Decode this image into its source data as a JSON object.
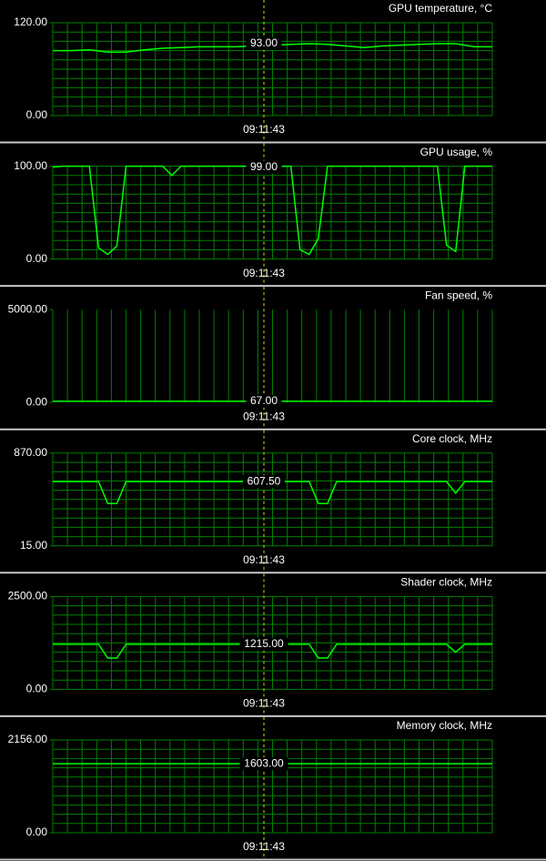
{
  "chart_data": [
    {
      "type": "line",
      "title": "GPU temperature, °C",
      "color": "#00ff00",
      "hgrid": true,
      "ylim": [
        0,
        120
      ],
      "yticks": [
        {
          "value": 0,
          "label": "0.00"
        },
        {
          "value": 120,
          "label": "120.00"
        }
      ],
      "values": [
        84,
        84,
        85,
        82,
        82,
        85,
        87,
        88,
        89,
        89,
        89,
        90,
        91,
        92,
        93,
        92,
        90,
        88,
        90,
        91,
        92,
        93,
        93,
        89,
        89
      ],
      "cursor": {
        "value": 93,
        "label": "93.00",
        "time": "09:11:43"
      }
    },
    {
      "type": "line",
      "title": "GPU usage, %",
      "color": "#00ff00",
      "hgrid": true,
      "ylim": [
        0,
        100
      ],
      "yticks": [
        {
          "value": 0,
          "label": "0.00"
        },
        {
          "value": 100,
          "label": "100.00"
        }
      ],
      "values": [
        99,
        100,
        100,
        100,
        100,
        12,
        5,
        14,
        100,
        100,
        100,
        100,
        100,
        90,
        100,
        100,
        100,
        100,
        100,
        100,
        100,
        100,
        100,
        100,
        100,
        100,
        100,
        10,
        5,
        22,
        100,
        100,
        100,
        100,
        100,
        100,
        100,
        100,
        100,
        100,
        100,
        100,
        100,
        15,
        8,
        100,
        100,
        100,
        100
      ],
      "cursor": {
        "value": 99,
        "label": "99.00",
        "time": "09:11:43"
      }
    },
    {
      "type": "line",
      "title": "Fan speed, %",
      "color": "#00ff00",
      "hgrid": false,
      "ylim": [
        0,
        5000
      ],
      "yticks": [
        {
          "value": 0,
          "label": "0.00"
        },
        {
          "value": 5000,
          "label": "5000.00"
        }
      ],
      "values": [
        67,
        67,
        67,
        67,
        67
      ],
      "cursor": {
        "value": 67,
        "label": "67.00",
        "time": "09:11:43"
      }
    },
    {
      "type": "line",
      "title": "Core clock, MHz",
      "color": "#00ff00",
      "hgrid": true,
      "ylim": [
        15,
        870
      ],
      "yticks": [
        {
          "value": 15,
          "label": "15.00"
        },
        {
          "value": 870,
          "label": "870.00"
        }
      ],
      "values": [
        607.5,
        607.5,
        607.5,
        607.5,
        607.5,
        607.5,
        405,
        405,
        607.5,
        607.5,
        607.5,
        607.5,
        607.5,
        607.5,
        607.5,
        607.5,
        607.5,
        607.5,
        607.5,
        607.5,
        607.5,
        607.5,
        607.5,
        607.5,
        607.5,
        607.5,
        607.5,
        607.5,
        607.5,
        405,
        405,
        607.5,
        607.5,
        607.5,
        607.5,
        607.5,
        607.5,
        607.5,
        607.5,
        607.5,
        607.5,
        607.5,
        607.5,
        607.5,
        500,
        607.5,
        607.5,
        607.5,
        607.5
      ],
      "cursor": {
        "value": 607.5,
        "label": "607.50",
        "time": "09:11:43"
      }
    },
    {
      "type": "line",
      "title": "Shader clock, MHz",
      "color": "#00ff00",
      "hgrid": true,
      "ylim": [
        0,
        2500
      ],
      "yticks": [
        {
          "value": 0,
          "label": "0.00"
        },
        {
          "value": 2500,
          "label": "2500.00"
        }
      ],
      "values": [
        1215,
        1215,
        1215,
        1215,
        1215,
        1215,
        842,
        842,
        1215,
        1215,
        1215,
        1215,
        1215,
        1215,
        1215,
        1215,
        1215,
        1215,
        1215,
        1215,
        1215,
        1215,
        1215,
        1215,
        1215,
        1215,
        1215,
        1215,
        1215,
        842,
        842,
        1215,
        1215,
        1215,
        1215,
        1215,
        1215,
        1215,
        1215,
        1215,
        1215,
        1215,
        1215,
        1215,
        1000,
        1215,
        1215,
        1215,
        1215
      ],
      "cursor": {
        "value": 1215,
        "label": "1215.00",
        "time": "09:11:43"
      }
    },
    {
      "type": "line",
      "title": "Memory clock, MHz",
      "color": "#00ff00",
      "hgrid": true,
      "ylim": [
        0,
        2156
      ],
      "yticks": [
        {
          "value": 0,
          "label": "0.00"
        },
        {
          "value": 2156,
          "label": "2156.00"
        }
      ],
      "values": [
        1603,
        1603,
        1603,
        1603,
        1603
      ],
      "cursor": {
        "value": 1603,
        "label": "1603.00",
        "time": "09:11:43"
      }
    }
  ]
}
